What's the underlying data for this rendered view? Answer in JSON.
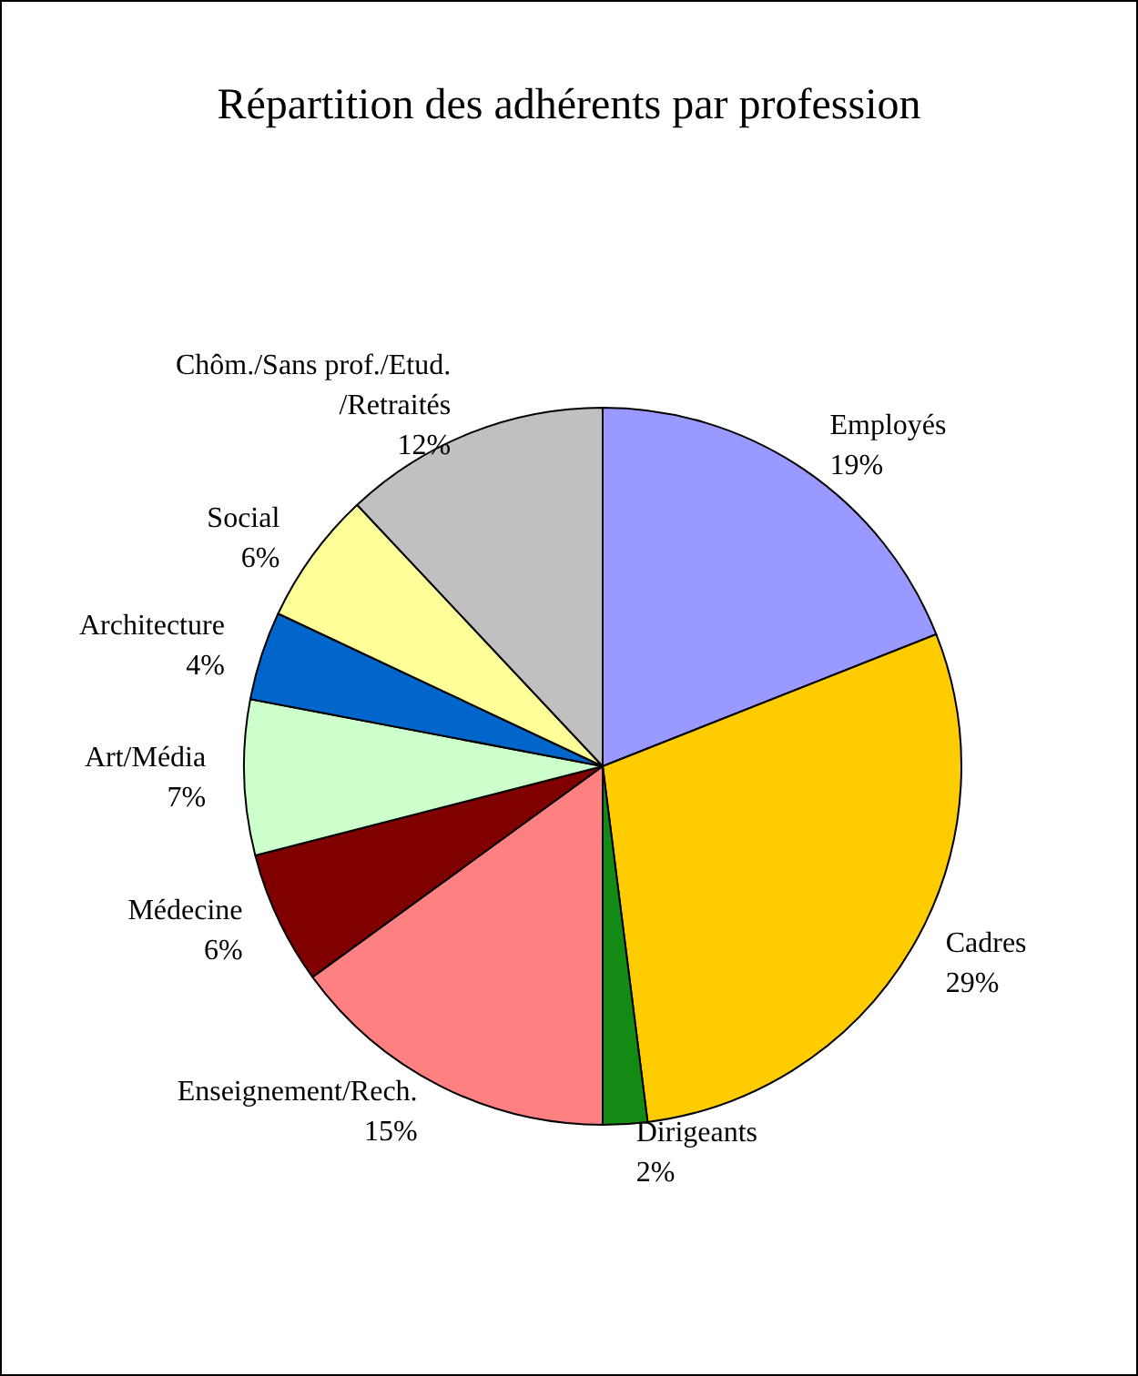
{
  "chart_data": {
    "type": "pie",
    "title": "Répartition des adhérents par profession",
    "categories": [
      "Employés",
      "Cadres",
      "Dirigeants",
      "Enseignement/Rech.",
      "Médecine",
      "Art/Média",
      "Architecture",
      "Social",
      "Chôm./Sans prof./Etud./Retraités"
    ],
    "values": [
      19,
      29,
      2,
      15,
      6,
      7,
      4,
      6,
      12
    ],
    "value_labels": [
      "19%",
      "29%",
      "2%",
      "15%",
      "6%",
      "7%",
      "4%",
      "6%",
      "12%"
    ],
    "colors": [
      "#9999ff",
      "#ffcc00",
      "#138a13",
      "#ff8080",
      "#800000",
      "#ccffcc",
      "#0066cc",
      "#ffff99",
      "#c0c0c0"
    ],
    "legend": false
  }
}
